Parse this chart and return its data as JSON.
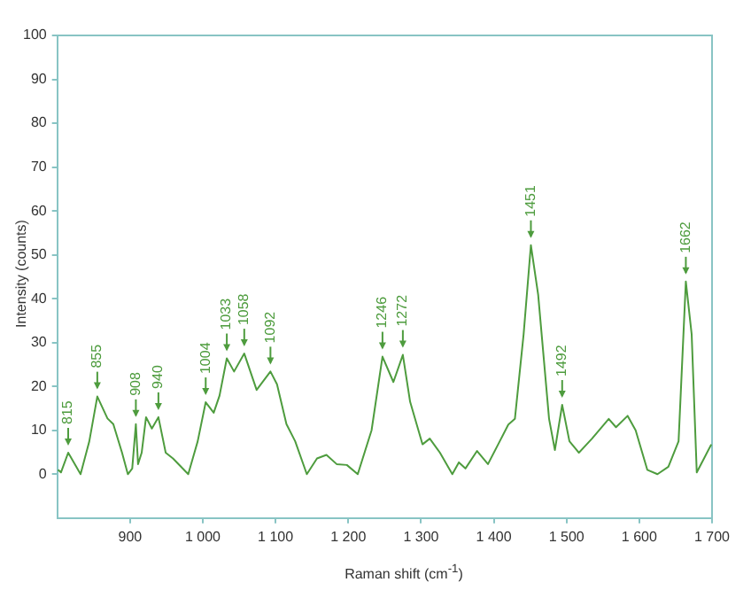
{
  "chart_data": {
    "type": "line",
    "xlabel": "Raman shift (cm$^{-1}$)",
    "ylabel": "Intensity (counts)",
    "xlim": [
      800,
      1700
    ],
    "ylim": [
      -10,
      100
    ],
    "xticks": [
      900,
      {
        "value": 1000,
        "label": "1 000"
      },
      {
        "value": 1100,
        "label": "1 100"
      },
      {
        "value": 1200,
        "label": "1 200"
      },
      {
        "value": 1300,
        "label": "1 300"
      },
      {
        "value": 1400,
        "label": "1 400"
      },
      {
        "value": 1500,
        "label": "1 500"
      },
      {
        "value": 1600,
        "label": "1 600"
      },
      {
        "value": 1700,
        "label": "1 700"
      }
    ],
    "yticks": [
      0,
      10,
      20,
      30,
      40,
      50,
      60,
      70,
      80,
      90,
      100
    ],
    "grid": false,
    "legend": false,
    "marker": "none",
    "line_style": "solid",
    "series": [
      {
        "color": "#4e9c3e",
        "x": [
          801,
          805,
          815,
          832,
          844,
          855,
          869,
          877,
          889,
          897,
          903,
          908,
          911,
          916,
          922,
          930,
          939,
          949,
          959,
          980,
          993,
          1004,
          1015,
          1023,
          1033,
          1043,
          1057,
          1074,
          1093,
          1102,
          1115,
          1127,
          1143,
          1157,
          1170,
          1184,
          1198,
          1213,
          1232,
          1247,
          1262,
          1275,
          1285,
          1302,
          1312,
          1326,
          1343,
          1352,
          1361,
          1377,
          1392,
          1406,
          1420,
          1429,
          1441,
          1451,
          1461,
          1476,
          1484,
          1494,
          1504,
          1517,
          1535,
          1558,
          1568,
          1584,
          1595,
          1611,
          1625,
          1640,
          1654,
          1664,
          1672,
          1679,
          1689,
          1699
        ],
        "values": [
          1,
          0.4,
          4.9,
          0,
          7.5,
          17.7,
          12.7,
          11.4,
          4.9,
          0,
          1.3,
          11.4,
          2.3,
          4.9,
          13,
          10.4,
          13,
          4.9,
          3.6,
          0,
          7.5,
          16.4,
          14,
          17.9,
          26.4,
          23.4,
          27.5,
          19.2,
          23.4,
          20.5,
          11.4,
          7.5,
          0,
          3.6,
          4.4,
          2.3,
          2.1,
          0,
          10,
          26.8,
          21,
          27.2,
          16.5,
          6.8,
          8.1,
          4.9,
          0,
          2.7,
          1.3,
          5.3,
          2.3,
          6.8,
          11.3,
          12.6,
          31.9,
          52.2,
          40.9,
          12.6,
          5.5,
          15.8,
          7.5,
          4.9,
          8.1,
          12.6,
          10.7,
          13.3,
          10,
          1,
          0,
          1.7,
          7.5,
          43.9,
          31.9,
          0.4,
          3.6,
          6.8
        ]
      }
    ],
    "annotations": [
      {
        "text": "815",
        "x": 815,
        "y": 4.9
      },
      {
        "text": "855",
        "x": 855,
        "y": 17.7
      },
      {
        "text": "908",
        "x": 908,
        "y": 11.4
      },
      {
        "text": "940",
        "x": 939,
        "y": 13
      },
      {
        "text": "1004",
        "x": 1004,
        "y": 16.4
      },
      {
        "text": "1033",
        "x": 1033,
        "y": 26.4
      },
      {
        "text": "1058",
        "x": 1057,
        "y": 27.5
      },
      {
        "text": "1092",
        "x": 1093,
        "y": 23.4
      },
      {
        "text": "1246",
        "x": 1247,
        "y": 26.8
      },
      {
        "text": "1272",
        "x": 1275,
        "y": 27.2
      },
      {
        "text": "1451",
        "x": 1451,
        "y": 52.2
      },
      {
        "text": "1492",
        "x": 1494,
        "y": 15.8
      },
      {
        "text": "1662",
        "x": 1664,
        "y": 43.9
      }
    ]
  }
}
